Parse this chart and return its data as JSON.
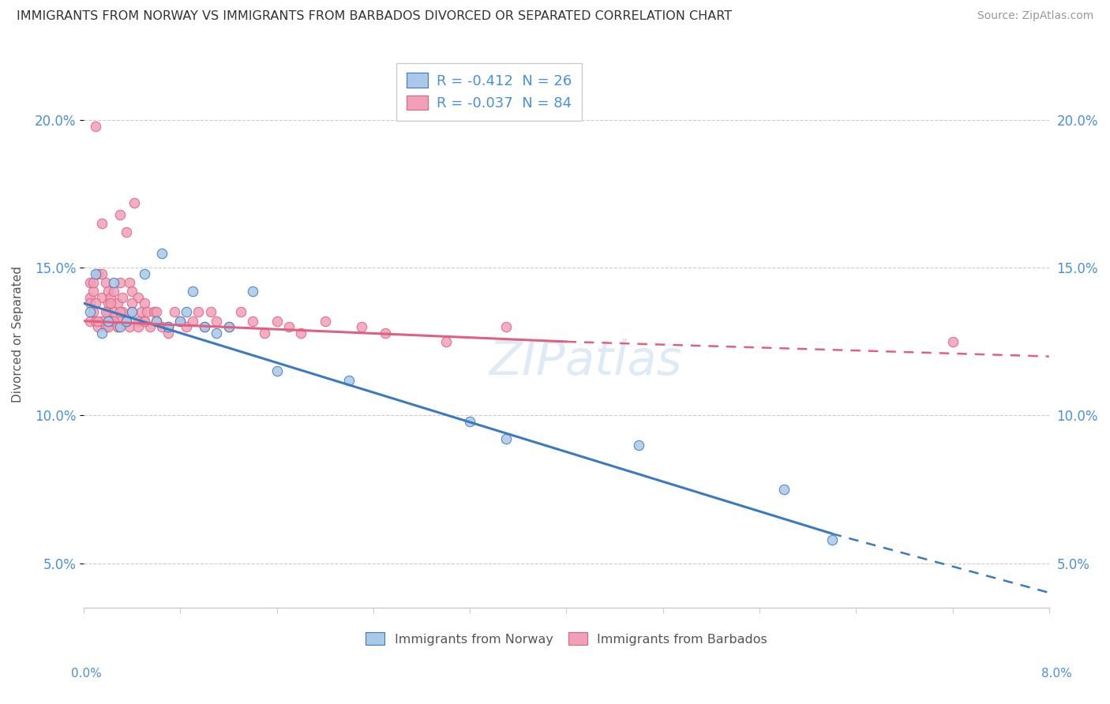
{
  "title": "IMMIGRANTS FROM NORWAY VS IMMIGRANTS FROM BARBADOS DIVORCED OR SEPARATED CORRELATION CHART",
  "source": "Source: ZipAtlas.com",
  "ylabel": "Divorced or Separated",
  "xlim": [
    0.0,
    8.0
  ],
  "ylim": [
    3.5,
    22.0
  ],
  "norway_R": -0.412,
  "norway_N": 26,
  "barbados_R": -0.037,
  "barbados_N": 84,
  "norway_line_color": "#3a7bbf",
  "barbados_line_color": "#e06080",
  "norway_scatter_color": "#aac8e8",
  "barbados_scatter_color": "#f0a0b8",
  "watermark": "ZIPatlas",
  "yticks": [
    5.0,
    10.0,
    15.0,
    20.0
  ],
  "norway_line_x0": 0.0,
  "norway_line_y0": 13.8,
  "norway_line_x1": 6.2,
  "norway_line_y1": 6.0,
  "norway_dash_x0": 6.2,
  "norway_dash_y0": 6.0,
  "norway_dash_x1": 8.0,
  "norway_dash_y1": 4.0,
  "barbados_line_x0": 0.0,
  "barbados_line_y0": 13.2,
  "barbados_line_x1": 4.0,
  "barbados_line_y1": 12.5,
  "barbados_dash_x0": 4.0,
  "barbados_dash_y0": 12.5,
  "barbados_dash_x1": 8.0,
  "barbados_dash_y1": 12.0,
  "norway_x": [
    0.05,
    0.1,
    0.15,
    0.2,
    0.25,
    0.3,
    0.35,
    0.4,
    0.5,
    0.6,
    0.65,
    0.7,
    0.8,
    0.85,
    0.9,
    1.0,
    1.1,
    1.2,
    1.4,
    1.6,
    2.2,
    3.2,
    3.5,
    4.6,
    5.8,
    6.2
  ],
  "norway_y": [
    13.5,
    14.8,
    12.8,
    13.2,
    14.5,
    13.0,
    13.2,
    13.5,
    14.8,
    13.2,
    15.5,
    13.0,
    13.2,
    13.5,
    14.2,
    13.0,
    12.8,
    13.0,
    14.2,
    11.5,
    11.2,
    9.8,
    9.2,
    9.0,
    7.5,
    5.8
  ],
  "barbados_x": [
    0.05,
    0.05,
    0.05,
    0.05,
    0.08,
    0.08,
    0.1,
    0.1,
    0.12,
    0.12,
    0.15,
    0.15,
    0.15,
    0.18,
    0.18,
    0.2,
    0.2,
    0.2,
    0.22,
    0.22,
    0.25,
    0.25,
    0.28,
    0.28,
    0.3,
    0.3,
    0.3,
    0.32,
    0.32,
    0.35,
    0.35,
    0.38,
    0.38,
    0.4,
    0.4,
    0.42,
    0.45,
    0.45,
    0.48,
    0.5,
    0.5,
    0.52,
    0.55,
    0.58,
    0.6,
    0.65,
    0.7,
    0.75,
    0.8,
    0.85,
    0.9,
    0.95,
    1.0,
    1.05,
    1.1,
    1.2,
    1.3,
    1.4,
    1.5,
    1.6,
    1.7,
    1.8,
    2.0,
    2.3,
    2.5,
    3.0,
    3.5,
    0.08,
    0.1,
    0.12,
    0.15,
    0.18,
    0.2,
    0.22,
    0.25,
    0.28,
    0.3,
    0.35,
    0.4,
    0.45,
    0.5,
    0.6,
    0.7,
    7.2
  ],
  "barbados_y": [
    13.2,
    14.0,
    14.5,
    13.8,
    14.2,
    13.5,
    19.8,
    13.2,
    14.8,
    13.0,
    16.5,
    14.0,
    13.2,
    14.5,
    13.0,
    13.5,
    14.2,
    13.8,
    13.2,
    14.0,
    13.5,
    14.2,
    13.0,
    13.8,
    13.2,
    14.5,
    16.8,
    13.5,
    14.0,
    13.2,
    16.2,
    14.5,
    13.0,
    13.5,
    14.2,
    17.2,
    13.2,
    14.0,
    13.5,
    13.8,
    13.2,
    13.5,
    13.0,
    13.5,
    13.2,
    13.0,
    12.8,
    13.5,
    13.2,
    13.0,
    13.2,
    13.5,
    13.0,
    13.5,
    13.2,
    13.0,
    13.5,
    13.2,
    12.8,
    13.2,
    13.0,
    12.8,
    13.2,
    13.0,
    12.8,
    12.5,
    13.0,
    14.5,
    13.8,
    13.2,
    14.8,
    13.5,
    13.0,
    13.8,
    13.2,
    13.0,
    13.5,
    13.2,
    13.8,
    13.0,
    13.2,
    13.5,
    13.0,
    12.5
  ]
}
